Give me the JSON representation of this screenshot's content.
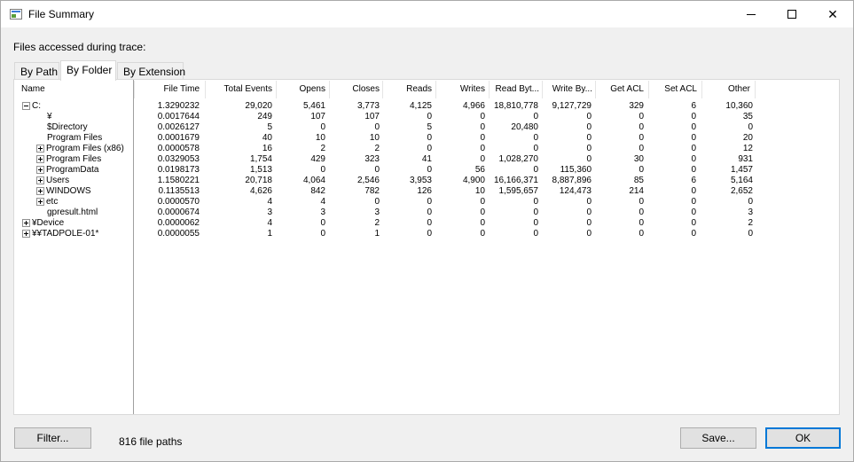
{
  "window": {
    "title": "File Summary",
    "app_icon": "file-summary-app-icon",
    "controls": {
      "minimize_icon": "minimize-icon",
      "maximize_icon": "maximize-icon",
      "close_icon": "close-icon",
      "close_glyph": "✕"
    }
  },
  "header_label": "Files accessed during trace:",
  "tabs": [
    {
      "label": "By Path",
      "active": false
    },
    {
      "label": "By Folder",
      "active": true
    },
    {
      "label": "By Extension",
      "active": false
    }
  ],
  "table": {
    "columns": [
      "Name",
      "File Time",
      "Total Events",
      "Opens",
      "Closes",
      "Reads",
      "Writes",
      "Read Byt...",
      "Write By...",
      "Get ACL",
      "Set ACL",
      "Other"
    ],
    "rows": [
      {
        "name": "C:",
        "expander": "minus",
        "depth": 0,
        "cells": [
          "1.3290232",
          "29,020",
          "5,461",
          "3,773",
          "4,125",
          "4,966",
          "18,810,778",
          "9,127,729",
          "329",
          "6",
          "10,360"
        ]
      },
      {
        "name": "¥",
        "expander": "none",
        "depth": 2,
        "cells": [
          "0.0017644",
          "249",
          "107",
          "107",
          "0",
          "0",
          "0",
          "0",
          "0",
          "0",
          "35"
        ]
      },
      {
        "name": "$Directory",
        "expander": "none",
        "depth": 2,
        "cells": [
          "0.0026127",
          "5",
          "0",
          "0",
          "5",
          "0",
          "20,480",
          "0",
          "0",
          "0",
          "0"
        ]
      },
      {
        "name": "Program Files",
        "expander": "none",
        "depth": 2,
        "cells": [
          "0.0001679",
          "40",
          "10",
          "10",
          "0",
          "0",
          "0",
          "0",
          "0",
          "0",
          "20"
        ]
      },
      {
        "name": "Program Files (x86)",
        "expander": "plus",
        "depth": 1,
        "cells": [
          "0.0000578",
          "16",
          "2",
          "2",
          "0",
          "0",
          "0",
          "0",
          "0",
          "0",
          "12"
        ]
      },
      {
        "name": "Program Files",
        "expander": "plus",
        "depth": 1,
        "cells": [
          "0.0329053",
          "1,754",
          "429",
          "323",
          "41",
          "0",
          "1,028,270",
          "0",
          "30",
          "0",
          "931"
        ]
      },
      {
        "name": "ProgramData",
        "expander": "plus",
        "depth": 1,
        "cells": [
          "0.0198173",
          "1,513",
          "0",
          "0",
          "0",
          "56",
          "0",
          "115,360",
          "0",
          "0",
          "1,457"
        ]
      },
      {
        "name": "Users",
        "expander": "plus",
        "depth": 1,
        "cells": [
          "1.1580221",
          "20,718",
          "4,064",
          "2,546",
          "3,953",
          "4,900",
          "16,166,371",
          "8,887,896",
          "85",
          "6",
          "5,164"
        ]
      },
      {
        "name": "WINDOWS",
        "expander": "plus",
        "depth": 1,
        "cells": [
          "0.1135513",
          "4,626",
          "842",
          "782",
          "126",
          "10",
          "1,595,657",
          "124,473",
          "214",
          "0",
          "2,652"
        ]
      },
      {
        "name": "etc",
        "expander": "plus",
        "depth": 1,
        "cells": [
          "0.0000570",
          "4",
          "4",
          "0",
          "0",
          "0",
          "0",
          "0",
          "0",
          "0",
          "0"
        ]
      },
      {
        "name": "gpresult.html",
        "expander": "none",
        "depth": 2,
        "cells": [
          "0.0000674",
          "3",
          "3",
          "3",
          "0",
          "0",
          "0",
          "0",
          "0",
          "0",
          "3"
        ]
      },
      {
        "name": "¥Device",
        "expander": "plus",
        "depth": 0,
        "cells": [
          "0.0000062",
          "4",
          "0",
          "2",
          "0",
          "0",
          "0",
          "0",
          "0",
          "0",
          "2"
        ]
      },
      {
        "name": "¥¥TADPOLE-01*",
        "expander": "plus",
        "depth": 0,
        "cells": [
          "0.0000055",
          "1",
          "0",
          "1",
          "0",
          "0",
          "0",
          "0",
          "0",
          "0",
          "0"
        ]
      }
    ]
  },
  "footer": {
    "filter_label": "Filter...",
    "status": "816 file paths",
    "save_label": "Save...",
    "ok_label": "OK"
  },
  "colors": {
    "accent": "#0078d7",
    "panel_bg": "#ffffff",
    "window_bg": "#f0f0f0"
  }
}
